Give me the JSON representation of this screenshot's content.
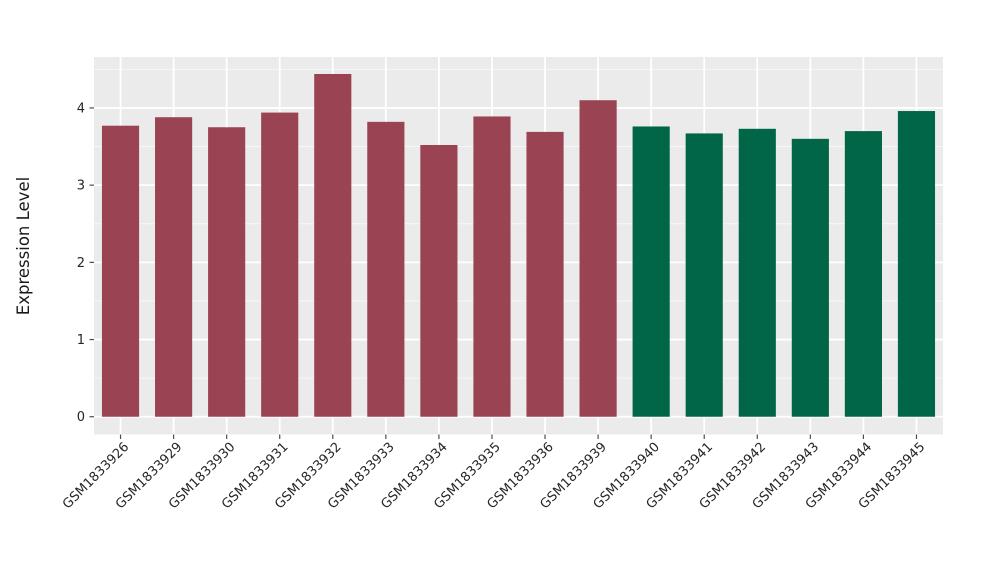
{
  "figure": {
    "background": "#FFFFFF"
  },
  "chart_data": {
    "type": "bar",
    "title": "",
    "xlabel": "",
    "ylabel": "Expression Level",
    "categories": [
      "GSM1833926",
      "GSM1833929",
      "GSM1833930",
      "GSM1833931",
      "GSM1833932",
      "GSM1833933",
      "GSM1833934",
      "GSM1833935",
      "GSM1833936",
      "GSM1833939",
      "GSM1833940",
      "GSM1833941",
      "GSM1833942",
      "GSM1833943",
      "GSM1833944",
      "GSM1833945"
    ],
    "values": [
      3.77,
      3.88,
      3.75,
      3.94,
      4.44,
      3.82,
      3.52,
      3.89,
      3.69,
      4.1,
      3.76,
      3.67,
      3.73,
      3.6,
      3.7,
      3.96
    ],
    "bar_colors": [
      "#9A4352",
      "#9A4352",
      "#9A4352",
      "#9A4352",
      "#9A4352",
      "#9A4352",
      "#9A4352",
      "#9A4352",
      "#9A4352",
      "#9A4352",
      "#006647",
      "#006647",
      "#006647",
      "#006647",
      "#006647",
      "#006647"
    ],
    "yticks": [
      0,
      1,
      2,
      3,
      4
    ],
    "ytick_labels": [
      "0",
      "1",
      "2",
      "3",
      "4"
    ],
    "yticks_minor": [
      0.5,
      1.5,
      2.5,
      3.5,
      4.5
    ],
    "ylim": [
      -0.23,
      4.66
    ],
    "bar_width_ratio": 0.7,
    "grid": true,
    "legend": "none",
    "colors": {
      "panel_background": "#EBEBEB",
      "grid_major": "#FFFFFF",
      "grid_minor": "#F7F7F7",
      "tick_mark": "#4D4D4D",
      "axis_text": "#262626",
      "axis_title": "#1A1A1A"
    }
  }
}
